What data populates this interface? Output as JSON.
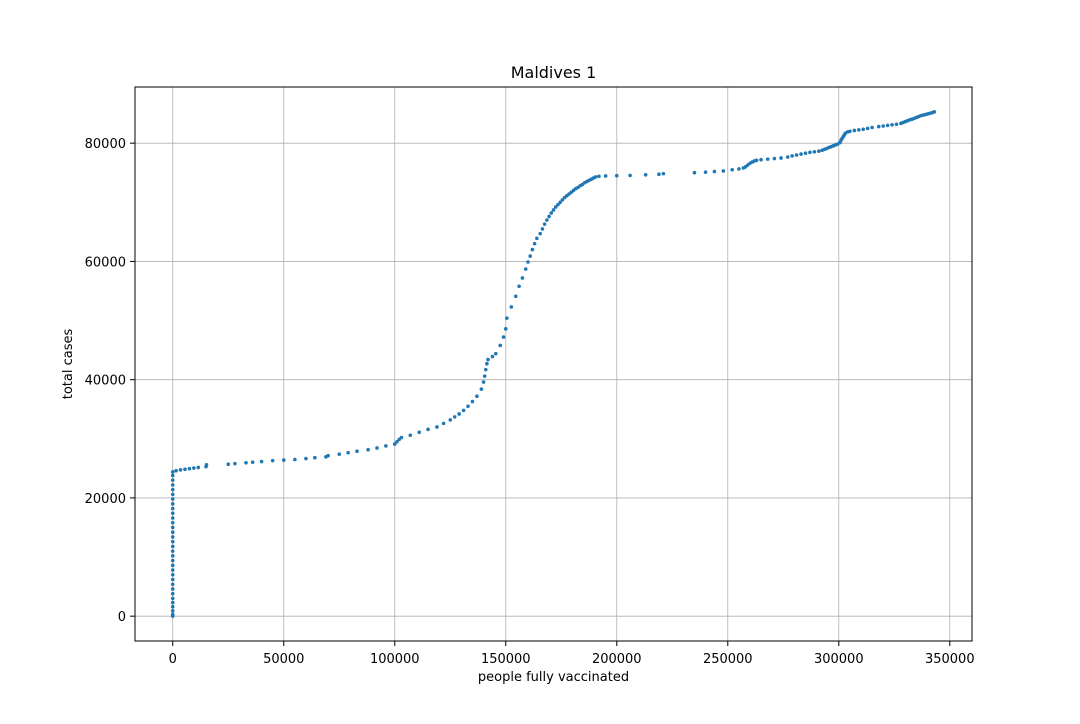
{
  "chart_data": {
    "type": "scatter",
    "title": "Maldives 1",
    "xlabel": "people fully vaccinated",
    "ylabel": "total cases",
    "xlim": [
      -17000,
      360000
    ],
    "ylim": [
      -4200,
      89500
    ],
    "xticks": [
      0,
      50000,
      100000,
      150000,
      200000,
      250000,
      300000,
      350000
    ],
    "xtick_labels": [
      "0",
      "50000",
      "100000",
      "150000",
      "200000",
      "250000",
      "300000",
      "350000"
    ],
    "yticks": [
      0,
      20000,
      40000,
      60000,
      80000
    ],
    "ytick_labels": [
      "0",
      "20000",
      "40000",
      "60000",
      "80000"
    ],
    "grid": true,
    "color": "#1f77b4",
    "series": [
      {
        "points": [
          [
            0,
            0
          ],
          [
            0,
            300
          ],
          [
            0,
            900
          ],
          [
            0,
            1600
          ],
          [
            0,
            2300
          ],
          [
            0,
            3000
          ],
          [
            0,
            3800
          ],
          [
            0,
            4600
          ],
          [
            0,
            5400
          ],
          [
            0,
            6200
          ],
          [
            0,
            7000
          ],
          [
            0,
            7800
          ],
          [
            0,
            8600
          ],
          [
            0,
            9400
          ],
          [
            0,
            10200
          ],
          [
            0,
            11000
          ],
          [
            0,
            11800
          ],
          [
            0,
            12600
          ],
          [
            0,
            13400
          ],
          [
            0,
            14200
          ],
          [
            0,
            15000
          ],
          [
            0,
            15800
          ],
          [
            0,
            16600
          ],
          [
            0,
            17400
          ],
          [
            0,
            18200
          ],
          [
            0,
            19000
          ],
          [
            0,
            19800
          ],
          [
            0,
            20600
          ],
          [
            0,
            21400
          ],
          [
            0,
            22200
          ],
          [
            0,
            23000
          ],
          [
            0,
            23800
          ],
          [
            0,
            24400
          ],
          [
            1500,
            24600
          ],
          [
            3500,
            24750
          ],
          [
            5500,
            24850
          ],
          [
            7500,
            24950
          ],
          [
            9500,
            25050
          ],
          [
            11500,
            25150
          ],
          [
            15000,
            25300
          ],
          [
            15200,
            25600
          ],
          [
            25000,
            25700
          ],
          [
            28000,
            25800
          ],
          [
            33000,
            25950
          ],
          [
            36000,
            26050
          ],
          [
            40000,
            26150
          ],
          [
            45000,
            26300
          ],
          [
            50000,
            26400
          ],
          [
            55000,
            26500
          ],
          [
            60000,
            26650
          ],
          [
            64000,
            26800
          ],
          [
            69000,
            26950
          ],
          [
            70000,
            27150
          ],
          [
            75000,
            27400
          ],
          [
            79000,
            27650
          ],
          [
            83000,
            27900
          ],
          [
            88000,
            28150
          ],
          [
            92000,
            28450
          ],
          [
            96000,
            28800
          ],
          [
            100000,
            29100
          ],
          [
            101000,
            29500
          ],
          [
            102000,
            29900
          ],
          [
            103000,
            30200
          ],
          [
            107000,
            30600
          ],
          [
            111000,
            31100
          ],
          [
            115000,
            31600
          ],
          [
            119000,
            32000
          ],
          [
            122000,
            32600
          ],
          [
            125000,
            33200
          ],
          [
            127000,
            33700
          ],
          [
            129000,
            34200
          ],
          [
            131000,
            34800
          ],
          [
            133000,
            35500
          ],
          [
            135000,
            36300
          ],
          [
            137000,
            37200
          ],
          [
            139000,
            38400
          ],
          [
            140000,
            39600
          ],
          [
            140500,
            40600
          ],
          [
            141000,
            41700
          ],
          [
            141500,
            42700
          ],
          [
            142000,
            43400
          ],
          [
            144000,
            43900
          ],
          [
            145500,
            44400
          ],
          [
            147500,
            45800
          ],
          [
            149000,
            47200
          ],
          [
            150000,
            48600
          ],
          [
            150500,
            50400
          ],
          [
            152500,
            52300
          ],
          [
            154500,
            54100
          ],
          [
            156000,
            55800
          ],
          [
            157500,
            57200
          ],
          [
            159000,
            58700
          ],
          [
            160000,
            59900
          ],
          [
            161000,
            60900
          ],
          [
            162000,
            62000
          ],
          [
            163000,
            63000
          ],
          [
            164000,
            63900
          ],
          [
            165500,
            64700
          ],
          [
            166500,
            65500
          ],
          [
            167500,
            66300
          ],
          [
            168500,
            67000
          ],
          [
            169500,
            67600
          ],
          [
            170500,
            68200
          ],
          [
            171500,
            68700
          ],
          [
            172500,
            69200
          ],
          [
            173500,
            69600
          ],
          [
            174500,
            70000
          ],
          [
            175500,
            70400
          ],
          [
            176500,
            70800
          ],
          [
            177500,
            71100
          ],
          [
            178500,
            71400
          ],
          [
            179500,
            71700
          ],
          [
            180500,
            72000
          ],
          [
            181500,
            72300
          ],
          [
            182500,
            72500
          ],
          [
            183500,
            72800
          ],
          [
            184500,
            73000
          ],
          [
            185500,
            73300
          ],
          [
            186500,
            73500
          ],
          [
            187500,
            73700
          ],
          [
            188500,
            73900
          ],
          [
            189500,
            74100
          ],
          [
            190500,
            74300
          ],
          [
            192000,
            74400
          ],
          [
            195000,
            74450
          ],
          [
            200000,
            74500
          ],
          [
            206000,
            74550
          ],
          [
            213000,
            74650
          ],
          [
            219000,
            74750
          ],
          [
            221000,
            74850
          ],
          [
            235000,
            75000
          ],
          [
            240000,
            75100
          ],
          [
            244000,
            75200
          ],
          [
            248000,
            75300
          ],
          [
            252000,
            75500
          ],
          [
            255000,
            75650
          ],
          [
            257000,
            75800
          ],
          [
            258000,
            76000
          ],
          [
            259000,
            76300
          ],
          [
            260000,
            76600
          ],
          [
            261000,
            76800
          ],
          [
            262000,
            77000
          ],
          [
            263000,
            77100
          ],
          [
            265000,
            77200
          ],
          [
            268000,
            77300
          ],
          [
            271000,
            77400
          ],
          [
            274000,
            77500
          ],
          [
            277000,
            77650
          ],
          [
            279000,
            77850
          ],
          [
            281000,
            78000
          ],
          [
            283000,
            78150
          ],
          [
            285000,
            78300
          ],
          [
            287000,
            78450
          ],
          [
            289000,
            78550
          ],
          [
            291000,
            78650
          ],
          [
            292500,
            78800
          ],
          [
            293500,
            78950
          ],
          [
            294500,
            79100
          ],
          [
            295500,
            79250
          ],
          [
            296500,
            79400
          ],
          [
            297500,
            79550
          ],
          [
            298500,
            79700
          ],
          [
            299500,
            79850
          ],
          [
            300500,
            80100
          ],
          [
            301000,
            80500
          ],
          [
            301500,
            80800
          ],
          [
            302000,
            81100
          ],
          [
            302500,
            81400
          ],
          [
            303000,
            81700
          ],
          [
            304000,
            81900
          ],
          [
            305000,
            82000
          ],
          [
            307000,
            82150
          ],
          [
            309000,
            82250
          ],
          [
            311000,
            82350
          ],
          [
            313000,
            82500
          ],
          [
            315000,
            82650
          ],
          [
            318000,
            82800
          ],
          [
            320000,
            82900
          ],
          [
            322000,
            83000
          ],
          [
            324000,
            83100
          ],
          [
            326000,
            83200
          ],
          [
            328000,
            83350
          ],
          [
            329000,
            83500
          ],
          [
            330000,
            83650
          ],
          [
            331000,
            83800
          ],
          [
            332000,
            83950
          ],
          [
            333000,
            84050
          ],
          [
            334000,
            84200
          ],
          [
            335000,
            84350
          ],
          [
            336000,
            84500
          ],
          [
            337000,
            84650
          ],
          [
            338000,
            84750
          ],
          [
            339000,
            84850
          ],
          [
            340000,
            84950
          ],
          [
            341000,
            85050
          ],
          [
            342000,
            85150
          ],
          [
            343000,
            85300
          ]
        ]
      }
    ]
  }
}
